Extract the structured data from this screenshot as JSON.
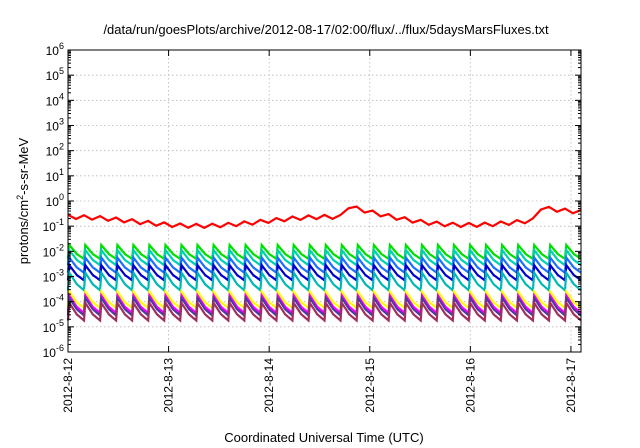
{
  "chart_data": {
    "type": "line",
    "title": "/data/run/goesPlots/archive/2012-08-17/02:00/flux/../flux/5daysMarsFluxes.txt",
    "xlabel": "Coordinated Universal Time (UTC)",
    "ylabel": "protons/cm²-s-sr-MeV",
    "ylabel_parts": {
      "before": "protons/cm",
      "sup": "2",
      "after": "-s-sr-MeV"
    },
    "yscale": "log",
    "ylim_exponents": [
      -6,
      6
    ],
    "y_tick_exponents": [
      6,
      5,
      4,
      3,
      2,
      1,
      0,
      -1,
      -2,
      -3,
      -4,
      -5,
      -6
    ],
    "y_tick_base": "10",
    "xlim_days": [
      0,
      5.1
    ],
    "x_ticks": [
      {
        "label": "2012-8-12",
        "day": 0
      },
      {
        "label": "2012-8-13",
        "day": 1
      },
      {
        "label": "2012-8-14",
        "day": 2
      },
      {
        "label": "2012-8-15",
        "day": 3
      },
      {
        "label": "2012-8-16",
        "day": 4
      },
      {
        "label": "2012-8-17",
        "day": 5
      }
    ],
    "grid": true,
    "legend": "none",
    "sawtooth": {
      "cycles": 32,
      "spikes": [
        2.73,
        4.68
      ]
    },
    "series": [
      {
        "color": "#ff0000",
        "type": "slow",
        "base": -0.85,
        "decay": 0.45,
        "amp": 0.5
      },
      {
        "color": "#00e000",
        "type": "saw",
        "high": -1.75,
        "low": -2.3
      },
      {
        "color": "#00d0b0",
        "type": "saw",
        "high": -1.95,
        "low": -2.55
      },
      {
        "color": "#1e6fff",
        "type": "saw",
        "high": -2.25,
        "low": -2.85
      },
      {
        "color": "#0000c8",
        "type": "saw",
        "high": -2.55,
        "low": -3.15
      },
      {
        "color": "#00b8b8",
        "type": "saw",
        "high": -2.85,
        "low": -3.55
      },
      {
        "color": "#ffff00",
        "type": "saw",
        "high": -3.6,
        "low": -4.25
      },
      {
        "color": "#ff00ff",
        "type": "saw",
        "high": -3.75,
        "low": -4.45
      },
      {
        "color": "#4b3aa0",
        "type": "saw",
        "high": -3.85,
        "low": -4.55
      },
      {
        "color": "#a03060",
        "type": "saw",
        "high": -4.05,
        "low": -4.75
      }
    ]
  }
}
